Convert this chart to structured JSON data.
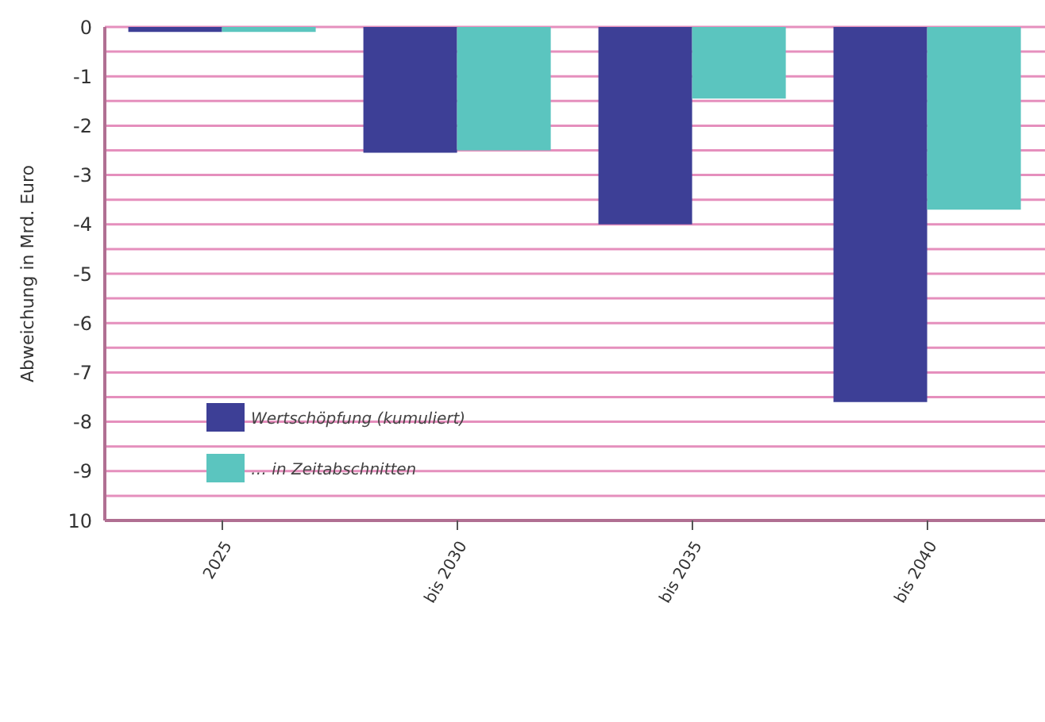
{
  "chart_data": {
    "type": "bar",
    "ylabel": "Abweichung in Mrd. Euro",
    "categories": [
      "2025",
      "bis 2030",
      "bis 2035",
      "bis 2040"
    ],
    "series": [
      {
        "name": "Wertschöpfung (kumuliert)",
        "color": "#3d3f96",
        "values": [
          -0.1,
          -2.55,
          -4,
          -7.6
        ]
      },
      {
        "name": "… in Zeitabschnitten",
        "color": "#5bc5bf",
        "values": [
          -0.1,
          -2.5,
          -1.45,
          -3.7
        ]
      }
    ],
    "ylim": [
      -10,
      0
    ],
    "yticks": [
      0,
      {
        "value": -0.5,
        "label": null
      },
      -1,
      {
        "value": -1.5,
        "label": null
      },
      -2,
      {
        "value": -2.5,
        "label": null
      },
      -3,
      {
        "value": -3.5,
        "label": null
      },
      -4,
      {
        "value": -4.5,
        "label": null
      },
      -5,
      {
        "value": -5.5,
        "label": null
      },
      -6,
      {
        "value": -6.5,
        "label": null
      },
      -7,
      {
        "value": -7.5,
        "label": null
      },
      -8,
      {
        "value": -8.5,
        "label": null
      },
      -9,
      {
        "value": -9.5,
        "label": null
      },
      {
        "value": -10,
        "label": "10"
      }
    ],
    "grid": "y",
    "legend": "left"
  }
}
